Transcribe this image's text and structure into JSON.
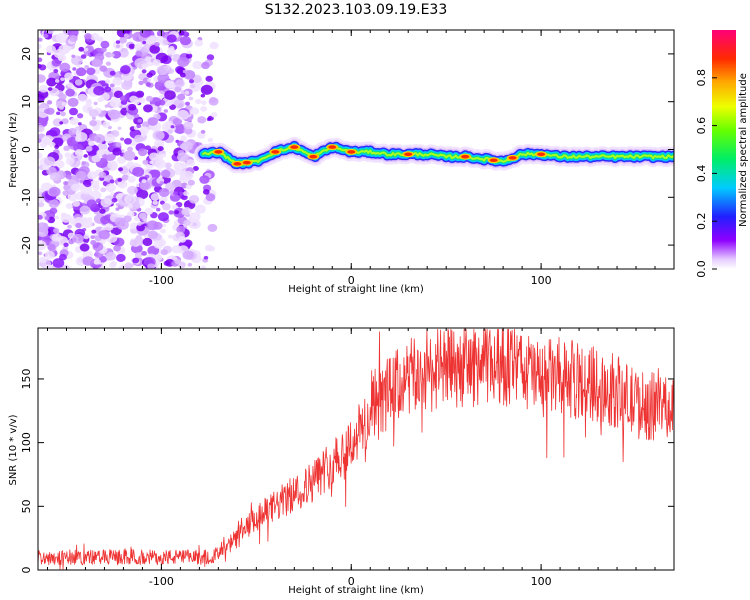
{
  "title": "S132.2023.103.09.19.E33",
  "chart_data": [
    {
      "type": "heatmap",
      "name": "spectrogram",
      "xlabel": "Height of straight line (km)",
      "ylabel": "Frequency (Hz)",
      "xlim": [
        -165,
        170
      ],
      "ylim": [
        -25,
        25
      ],
      "xticks": [
        -100,
        0,
        100
      ],
      "yticks": [
        -20,
        -10,
        0,
        10,
        20
      ],
      "colorbar": {
        "label": "Normalized spectral amplitude",
        "range": [
          0.0,
          1.0
        ],
        "ticks": [
          0.0,
          0.2,
          0.4,
          0.6,
          0.8
        ]
      },
      "noise_region_x": [
        -165,
        -72
      ],
      "line_trace": {
        "x": [
          -78,
          -70,
          -60,
          -50,
          -40,
          -30,
          -20,
          -10,
          0,
          10,
          20,
          30,
          40,
          50,
          60,
          70,
          80,
          90,
          100,
          110,
          120,
          130,
          140,
          150,
          160,
          170
        ],
        "y": [
          -1,
          -0.5,
          -3,
          -2.5,
          -0.5,
          0.5,
          -1.5,
          0.5,
          -0.5,
          -0.5,
          -1,
          -1,
          -1,
          -1.5,
          -1.5,
          -2,
          -2.5,
          -1,
          -1,
          -1.5,
          -1.5,
          -1.5,
          -1.5,
          -1.5,
          -1.5,
          -1.5
        ],
        "peaks_x": [
          -70,
          -60,
          -55,
          -40,
          -30,
          -20,
          -10,
          0,
          30,
          60,
          75,
          85,
          100
        ]
      }
    },
    {
      "type": "line",
      "name": "snr",
      "xlabel": "Height of straight line (km)",
      "ylabel": "SNR (10 * v/v)",
      "xlim": [
        -165,
        170
      ],
      "ylim": [
        0,
        190
      ],
      "xticks": [
        -100,
        0,
        100
      ],
      "yticks": [
        0,
        50,
        100,
        150
      ],
      "color": "#ee3333",
      "envelope": {
        "x": [
          -165,
          -140,
          -110,
          -80,
          -70,
          -60,
          -50,
          -40,
          -30,
          -20,
          -10,
          0,
          10,
          20,
          30,
          40,
          50,
          60,
          70,
          80,
          90,
          100,
          110,
          120,
          130,
          140,
          150,
          160,
          170
        ],
        "y": [
          10,
          10,
          10,
          10,
          12,
          25,
          40,
          50,
          60,
          70,
          85,
          100,
          120,
          140,
          150,
          155,
          158,
          160,
          162,
          162,
          158,
          150,
          152,
          148,
          145,
          140,
          130,
          128,
          130
        ]
      }
    }
  ]
}
